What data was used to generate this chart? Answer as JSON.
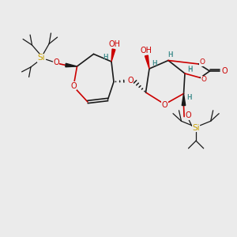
{
  "bg_color": "#ebebeb",
  "bond_color": "#1a1a1a",
  "oxygen_color": "#cc0000",
  "silicon_color": "#c8a000",
  "stereo_label_color": "#3a8a8a",
  "figsize": [
    3.0,
    3.0
  ],
  "dpi": 100,
  "xlim": [
    0,
    10
  ],
  "ylim": [
    0,
    10
  ]
}
